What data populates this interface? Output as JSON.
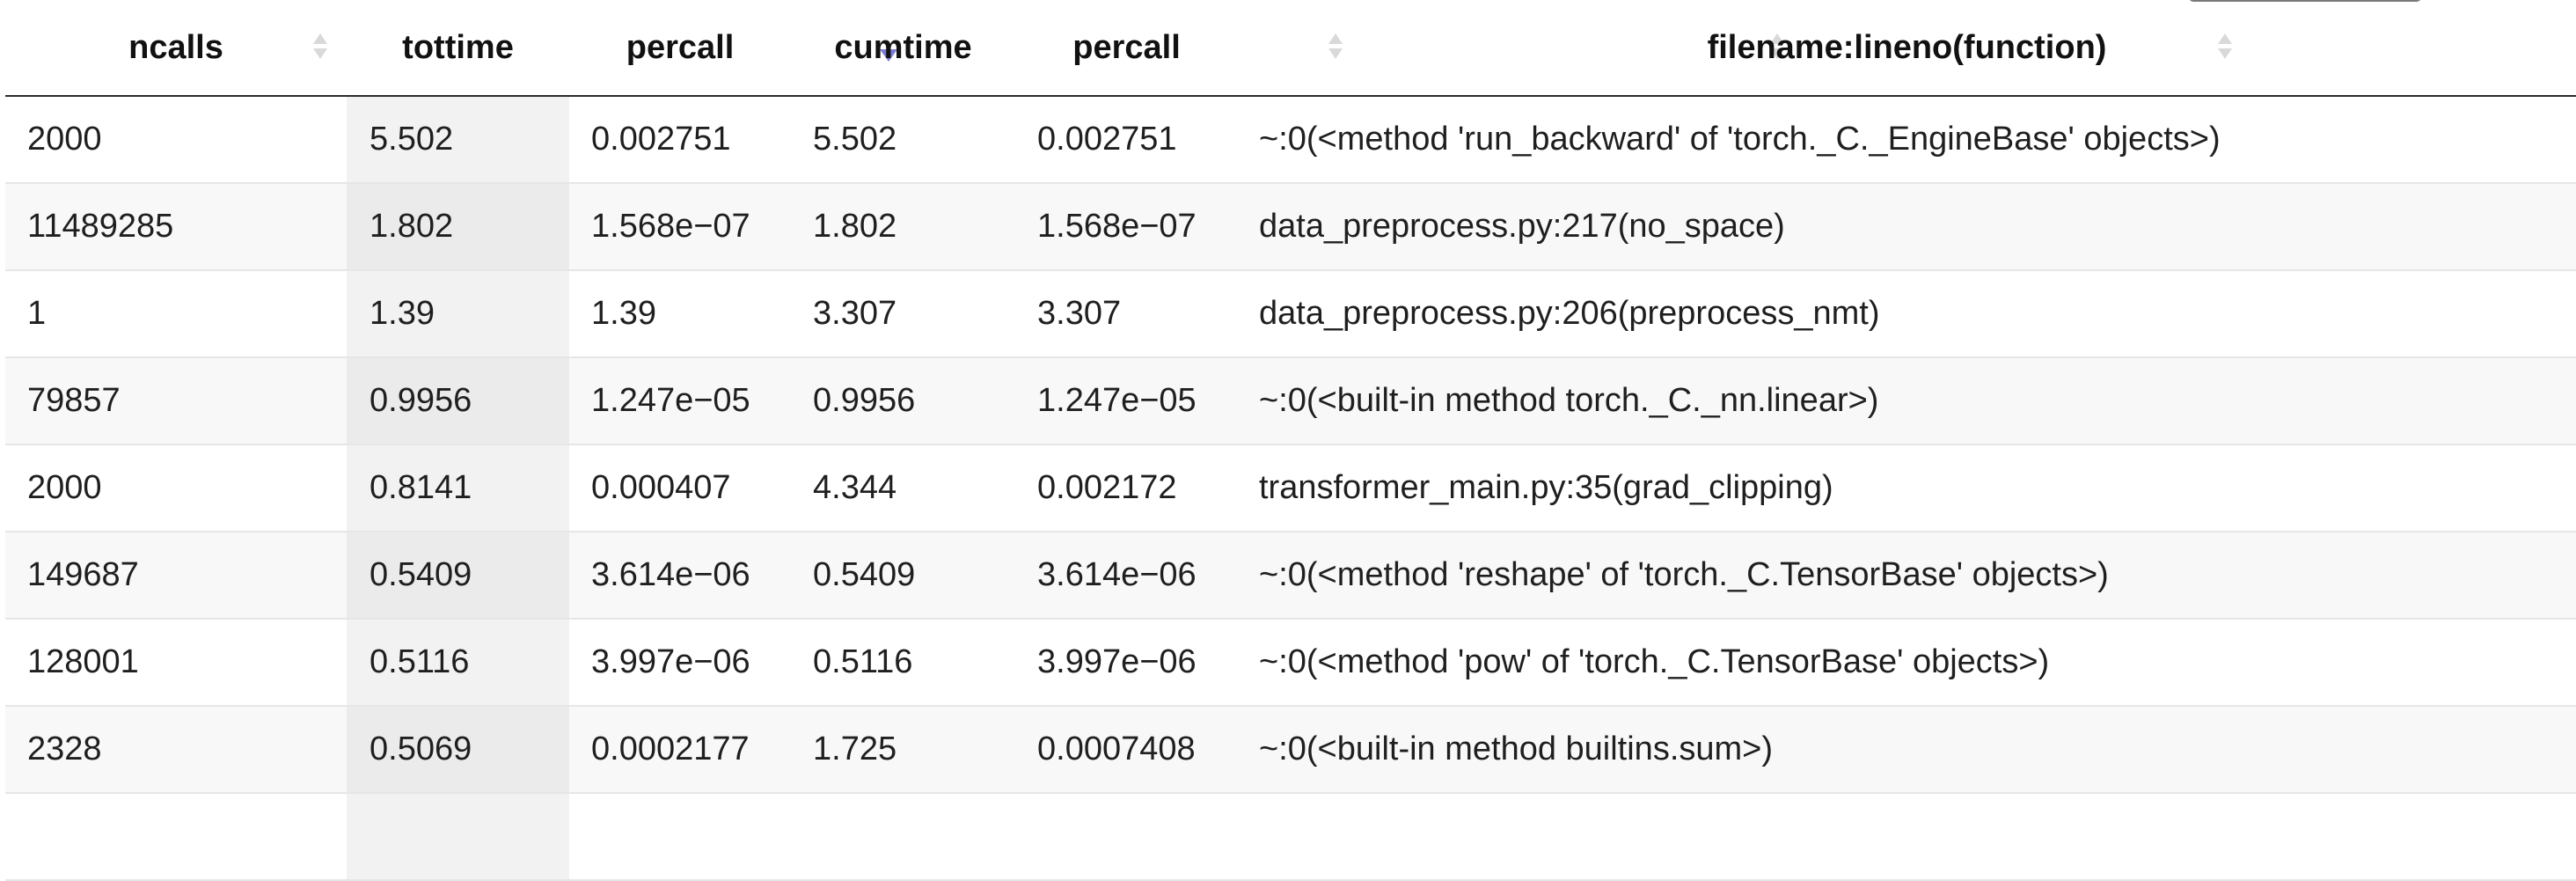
{
  "columns": [
    {
      "label": "ncalls",
      "sort": "none"
    },
    {
      "label": "tottime",
      "sort": "desc"
    },
    {
      "label": "percall",
      "sort": "none"
    },
    {
      "label": "cumtime",
      "sort": "none"
    },
    {
      "label": "percall",
      "sort": "none"
    },
    {
      "label": "filename:lineno(function)",
      "sort": "none"
    }
  ],
  "rows": [
    {
      "ncalls": "2000",
      "tottime": "5.502",
      "percall": "0.002751",
      "cumtime": "5.502",
      "percall_cum": "0.002751",
      "function": "~:0(<method 'run_backward' of 'torch._C._EngineBase' objects>)"
    },
    {
      "ncalls": "11489285",
      "tottime": "1.802",
      "percall": "1.568e−07",
      "cumtime": "1.802",
      "percall_cum": "1.568e−07",
      "function": "data_preprocess.py:217(no_space)"
    },
    {
      "ncalls": "1",
      "tottime": "1.39",
      "percall": "1.39",
      "cumtime": "3.307",
      "percall_cum": "3.307",
      "function": "data_preprocess.py:206(preprocess_nmt)"
    },
    {
      "ncalls": "79857",
      "tottime": "0.9956",
      "percall": "1.247e−05",
      "cumtime": "0.9956",
      "percall_cum": "1.247e−05",
      "function": "~:0(<built‑in method torch._C._nn.linear>)"
    },
    {
      "ncalls": "2000",
      "tottime": "0.8141",
      "percall": "0.000407",
      "cumtime": "4.344",
      "percall_cum": "0.002172",
      "function": "transformer_main.py:35(grad_clipping)"
    },
    {
      "ncalls": "149687",
      "tottime": "0.5409",
      "percall": "3.614e−06",
      "cumtime": "0.5409",
      "percall_cum": "3.614e−06",
      "function": "~:0(<method 'reshape' of 'torch._C.TensorBase' objects>)"
    },
    {
      "ncalls": "128001",
      "tottime": "0.5116",
      "percall": "3.997e−06",
      "cumtime": "0.5116",
      "percall_cum": "3.997e−06",
      "function": "~:0(<method 'pow' of 'torch._C.TensorBase' objects>)"
    },
    {
      "ncalls": "2328",
      "tottime": "0.5069",
      "percall": "0.0002177",
      "cumtime": "1.725",
      "percall_cum": "0.0007408",
      "function": "~:0(<built‑in method builtins.sum>)"
    },
    {
      "ncalls": "",
      "tottime": "",
      "percall": "",
      "cumtime": "",
      "percall_cum": "",
      "function": ""
    }
  ]
}
